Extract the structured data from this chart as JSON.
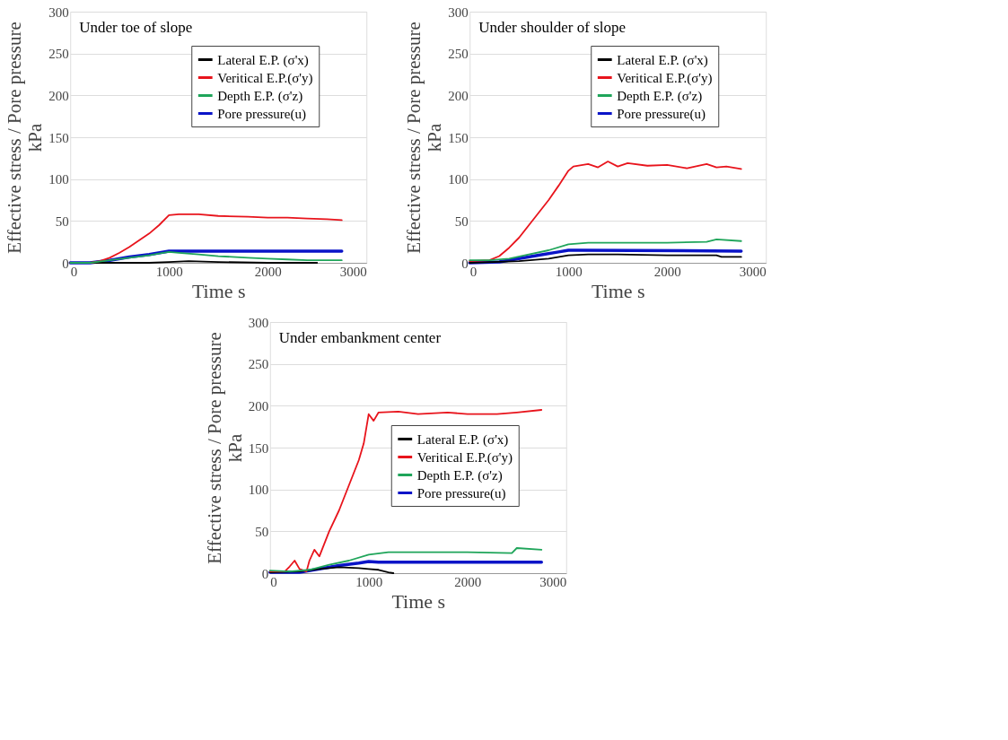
{
  "chart_data": [
    {
      "type": "line",
      "title": "Under toe of slope",
      "xlabel": "Time s",
      "ylabel": "Effective stress / Pore pressure\nkPa",
      "xlim": [
        0,
        3000
      ],
      "xticks": [
        0,
        1000,
        2000,
        3000
      ],
      "ylim": [
        0,
        300
      ],
      "yticks": [
        0,
        50,
        100,
        150,
        200,
        250,
        300
      ],
      "grid": "y",
      "legend": "top right",
      "series": [
        {
          "name": "Lateral E.P. (σ'x)",
          "color": "#000000",
          "x": [
            0,
            200,
            500,
            800,
            1000,
            1200,
            1500,
            2000,
            2500
          ],
          "values": [
            0,
            0,
            0,
            0,
            1,
            2,
            1,
            0,
            0
          ]
        },
        {
          "name": "Veritical E.P.(σ'y)",
          "color": "#e8141c",
          "x": [
            0,
            200,
            300,
            400,
            500,
            600,
            700,
            800,
            900,
            1000,
            1100,
            1200,
            1300,
            1500,
            1800,
            2000,
            2200,
            2400,
            2600,
            2750
          ],
          "values": [
            0,
            0,
            2,
            6,
            12,
            19,
            27,
            35,
            45,
            57,
            58,
            58,
            58,
            56,
            55,
            54,
            54,
            53,
            52,
            51
          ]
        },
        {
          "name": "Depth E.P. (σ'z)",
          "color": "#1fa55a",
          "x": [
            0,
            200,
            400,
            600,
            800,
            900,
            1000,
            1100,
            1300,
            1500,
            1800,
            2000,
            2200,
            2400,
            2600,
            2750
          ],
          "values": [
            0,
            0,
            3,
            6,
            9,
            11,
            13,
            12,
            10,
            8,
            6,
            5,
            4,
            3,
            3,
            3
          ]
        },
        {
          "name": "Pore pressure(u)",
          "color": "#0a14c8",
          "x": [
            0,
            200,
            400,
            600,
            800,
            1000,
            1100,
            2000,
            2750
          ],
          "values": [
            0,
            0,
            3,
            7,
            10,
            14,
            14,
            14,
            14
          ]
        }
      ]
    },
    {
      "type": "line",
      "title": "Under shoulder of slope",
      "xlabel": "Time s",
      "ylabel": "Effective stress / Pore pressure\nkPa",
      "xlim": [
        0,
        3000
      ],
      "xticks": [
        0,
        1000,
        2000,
        3000
      ],
      "ylim": [
        0,
        300
      ],
      "yticks": [
        0,
        50,
        100,
        150,
        200,
        250,
        300
      ],
      "grid": "y",
      "legend": "top right",
      "series": [
        {
          "name": "Lateral E.P. (σ'x)",
          "color": "#000000",
          "x": [
            0,
            500,
            800,
            1000,
            1200,
            1500,
            2000,
            2500,
            2550,
            2750
          ],
          "values": [
            0,
            2,
            5,
            9,
            10,
            10,
            9,
            9,
            7,
            7
          ]
        },
        {
          "name": "Veritical E.P.(σ'y)",
          "color": "#e8141c",
          "x": [
            0,
            200,
            300,
            400,
            500,
            600,
            700,
            800,
            900,
            1000,
            1050,
            1200,
            1300,
            1400,
            1500,
            1600,
            1800,
            2000,
            2200,
            2400,
            2500,
            2600,
            2750
          ],
          "values": [
            2,
            3,
            8,
            18,
            30,
            45,
            60,
            75,
            92,
            110,
            115,
            118,
            114,
            121,
            115,
            119,
            116,
            117,
            113,
            118,
            114,
            115,
            112
          ]
        },
        {
          "name": "Depth E.P. (σ'z)",
          "color": "#1fa55a",
          "x": [
            0,
            200,
            400,
            600,
            800,
            1000,
            1200,
            1500,
            2000,
            2400,
            2500,
            2750
          ],
          "values": [
            3,
            3,
            5,
            10,
            15,
            22,
            24,
            24,
            24,
            25,
            28,
            26
          ]
        },
        {
          "name": "Pore pressure(u)",
          "color": "#0a14c8",
          "x": [
            0,
            300,
            500,
            700,
            900,
            1000,
            1100,
            2750
          ],
          "values": [
            0,
            1,
            5,
            9,
            13,
            15,
            15,
            14
          ]
        }
      ]
    },
    {
      "type": "line",
      "title": "Under embankment center",
      "xlabel": "Time s",
      "ylabel": "Effective stress / Pore pressure\nkPa",
      "xlim": [
        0,
        3000
      ],
      "xticks": [
        0,
        1000,
        2000,
        3000
      ],
      "ylim": [
        0,
        300
      ],
      "yticks": [
        0,
        50,
        100,
        150,
        200,
        250,
        300
      ],
      "grid": "y",
      "legend": "right",
      "series": [
        {
          "name": "Lateral E.P. (σ'x)",
          "color": "#000000",
          "x": [
            0,
            300,
            500,
            700,
            900,
            1000,
            1100,
            1200,
            1250
          ],
          "values": [
            1,
            2,
            5,
            7,
            6,
            5,
            4,
            1,
            0
          ]
        },
        {
          "name": "Veritical E.P.(σ'y)",
          "color": "#e8141c",
          "x": [
            0,
            150,
            200,
            250,
            300,
            370,
            400,
            450,
            500,
            550,
            600,
            700,
            800,
            900,
            950,
            1000,
            1050,
            1100,
            1300,
            1500,
            1800,
            2000,
            2300,
            2500,
            2750
          ],
          "values": [
            2,
            2,
            8,
            15,
            5,
            2,
            15,
            28,
            20,
            35,
            50,
            75,
            105,
            135,
            155,
            190,
            182,
            192,
            193,
            190,
            192,
            190,
            190,
            192,
            195
          ]
        },
        {
          "name": "Depth E.P. (σ'z)",
          "color": "#1fa55a",
          "x": [
            0,
            200,
            400,
            600,
            800,
            1000,
            1200,
            1500,
            2000,
            2450,
            2500,
            2750
          ],
          "values": [
            3,
            2,
            4,
            10,
            15,
            22,
            25,
            25,
            25,
            24,
            30,
            28
          ]
        },
        {
          "name": "Pore pressure(u)",
          "color": "#0a14c8",
          "x": [
            0,
            300,
            500,
            700,
            900,
            1000,
            1100,
            2750
          ],
          "values": [
            1,
            1,
            5,
            9,
            12,
            14,
            13,
            13
          ]
        }
      ]
    }
  ]
}
